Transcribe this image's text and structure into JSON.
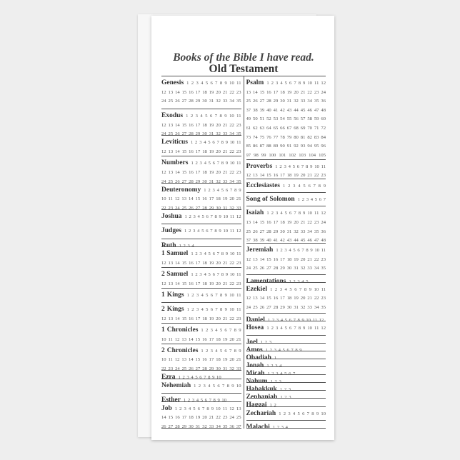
{
  "title": "Books of the Bible I have read.",
  "subtitle": "Old Testament",
  "left_column": [
    {
      "name": "Genesis",
      "chapters": 50
    },
    {
      "name": "Exodus",
      "chapters": 40
    },
    {
      "name": "Leviticus",
      "chapters": 27
    },
    {
      "name": "Numbers",
      "chapters": 36
    },
    {
      "name": "Deuteronomy",
      "chapters": 34
    },
    {
      "name": "Joshua",
      "chapters": 24
    },
    {
      "name": "Judges",
      "chapters": 21
    },
    {
      "name": "Ruth",
      "chapters": 4
    },
    {
      "name": "1 Samuel",
      "chapters": 31
    },
    {
      "name": "2 Samuel",
      "chapters": 24
    },
    {
      "name": "1 Kings",
      "chapters": 22
    },
    {
      "name": "2 Kings",
      "chapters": 25
    },
    {
      "name": "1 Chronicles",
      "chapters": 29
    },
    {
      "name": "2  Chronicles",
      "chapters": 36
    },
    {
      "name": "Ezra",
      "chapters": 10
    },
    {
      "name": "Nehemiah",
      "chapters": 13
    },
    {
      "name": "Esther",
      "chapters": 10
    },
    {
      "name": "Job",
      "chapters": 42
    }
  ],
  "right_column": [
    {
      "name": "Psalm",
      "chapters": 150
    },
    {
      "name": "Proverbs",
      "chapters": 31
    },
    {
      "name": "Ecclesiastes",
      "chapters": 12
    },
    {
      "name": "Song of Solomon",
      "chapters": 8
    },
    {
      "name": "Isaiah",
      "chapters": 66
    },
    {
      "name": "Jeremiah",
      "chapters": 52
    },
    {
      "name": "Lamentations",
      "chapters": 5
    },
    {
      "name": "Ezekiel",
      "chapters": 48
    },
    {
      "name": "Daniel",
      "chapters": 12
    },
    {
      "name": "Hosea",
      "chapters": 14
    },
    {
      "name": "Joel",
      "chapters": 3
    },
    {
      "name": "Amos",
      "chapters": 9
    },
    {
      "name": "Obadiah",
      "chapters": 1
    },
    {
      "name": "Jonah",
      "chapters": 4
    },
    {
      "name": "Micah",
      "chapters": 7
    },
    {
      "name": "Nahum",
      "chapters": 3
    },
    {
      "name": "Habakkuk",
      "chapters": 3
    },
    {
      "name": "Zephaniah",
      "chapters": 3
    },
    {
      "name": "Haggai",
      "chapters": 2
    },
    {
      "name": "Zechariah",
      "chapters": 14
    },
    {
      "name": "Malachi",
      "chapters": 4
    }
  ]
}
